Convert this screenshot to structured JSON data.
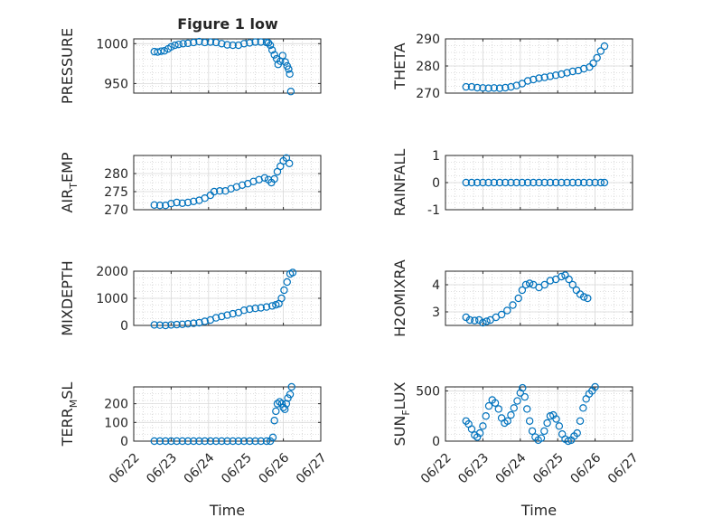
{
  "figure": {
    "title": "Figure 1 low",
    "marker_color": "#0072BD",
    "axis_color": "#262626",
    "grid_color": "#c0c0c0"
  },
  "chart_data": [
    {
      "type": "scatter",
      "id": "pressure",
      "title": "Figure 1 low",
      "ylabel": "PRESSURE",
      "ylabel_main": "PRESSURE",
      "ylabel_sub": "",
      "ylabel_rest": "",
      "xlabel": "",
      "ylim": [
        938,
        1006
      ],
      "yticks": [
        950,
        1000
      ],
      "ytick_labels": [
        "950",
        "1000"
      ],
      "xlim": [
        0,
        5
      ],
      "xticks": [
        0,
        1,
        2,
        3,
        4,
        5
      ],
      "xtick_labels": [
        "",
        "",
        "",
        "",
        "",
        ""
      ],
      "grid": "on",
      "marker": "circle-open",
      "points": [
        [
          0.55,
          990
        ],
        [
          0.64,
          989.5
        ],
        [
          0.73,
          990.5
        ],
        [
          0.82,
          991
        ],
        [
          0.92,
          993.5
        ],
        [
          1.0,
          996
        ],
        [
          1.1,
          998
        ],
        [
          1.2,
          999
        ],
        [
          1.32,
          1000
        ],
        [
          1.45,
          1000.5
        ],
        [
          1.6,
          1001.5
        ],
        [
          1.75,
          1002.5
        ],
        [
          1.9,
          1001.5
        ],
        [
          2.05,
          1002
        ],
        [
          2.2,
          1001.5
        ],
        [
          2.35,
          1000
        ],
        [
          2.5,
          998.5
        ],
        [
          2.65,
          998
        ],
        [
          2.8,
          998
        ],
        [
          2.95,
          1000
        ],
        [
          3.1,
          1001
        ],
        [
          3.25,
          1002
        ],
        [
          3.4,
          1002
        ],
        [
          3.55,
          1001.5
        ],
        [
          3.6,
          1001
        ],
        [
          3.65,
          998
        ],
        [
          3.7,
          992
        ],
        [
          3.76,
          986
        ],
        [
          3.82,
          981
        ],
        [
          3.86,
          974
        ],
        [
          3.92,
          978
        ],
        [
          3.98,
          985
        ],
        [
          4.05,
          977
        ],
        [
          4.1,
          972
        ],
        [
          4.14,
          968
        ],
        [
          4.17,
          962
        ],
        [
          4.2,
          940
        ]
      ]
    },
    {
      "type": "scatter",
      "id": "theta",
      "ylabel": "THETA",
      "ylabel_main": "THETA",
      "ylabel_sub": "",
      "ylabel_rest": "",
      "xlabel": "",
      "ylim": [
        270,
        290
      ],
      "yticks": [
        270,
        280,
        290
      ],
      "ytick_labels": [
        "270",
        "280",
        "290"
      ],
      "xlim": [
        0,
        5
      ],
      "xticks": [
        0,
        1,
        2,
        3,
        4,
        5
      ],
      "xtick_labels": [
        "",
        "",
        "",
        "",
        "",
        ""
      ],
      "grid": "on",
      "marker": "circle-open",
      "points": [
        [
          0.55,
          272.3
        ],
        [
          0.7,
          272.3
        ],
        [
          0.85,
          272
        ],
        [
          1.0,
          271.9
        ],
        [
          1.15,
          271.8
        ],
        [
          1.3,
          271.9
        ],
        [
          1.45,
          271.8
        ],
        [
          1.6,
          272
        ],
        [
          1.75,
          272.3
        ],
        [
          1.9,
          272.8
        ],
        [
          2.05,
          273.5
        ],
        [
          2.2,
          274.5
        ],
        [
          2.35,
          275
        ],
        [
          2.5,
          275.5
        ],
        [
          2.65,
          275.8
        ],
        [
          2.8,
          276.2
        ],
        [
          2.95,
          276.6
        ],
        [
          3.1,
          277
        ],
        [
          3.25,
          277.5
        ],
        [
          3.4,
          278
        ],
        [
          3.55,
          278.3
        ],
        [
          3.7,
          279
        ],
        [
          3.85,
          279.6
        ],
        [
          3.95,
          281
        ],
        [
          4.05,
          283
        ],
        [
          4.15,
          285.5
        ],
        [
          4.25,
          287.3
        ]
      ]
    },
    {
      "type": "scatter",
      "id": "air_temp",
      "ylabel": "AIR_TEMP",
      "ylabel_main": "AIR",
      "ylabel_sub": "T",
      "ylabel_rest": "EMP",
      "xlabel": "",
      "ylim": [
        270,
        285
      ],
      "yticks": [
        270,
        275,
        280
      ],
      "ytick_labels": [
        "270",
        "275",
        "280"
      ],
      "xlim": [
        0,
        5
      ],
      "xticks": [
        0,
        1,
        2,
        3,
        4,
        5
      ],
      "xtick_labels": [
        "",
        "",
        "",
        "",
        "",
        ""
      ],
      "grid": "on",
      "marker": "circle-open",
      "points": [
        [
          0.55,
          271.3
        ],
        [
          0.7,
          271.2
        ],
        [
          0.85,
          271.2
        ],
        [
          1.0,
          271.7
        ],
        [
          1.15,
          272
        ],
        [
          1.3,
          271.8
        ],
        [
          1.45,
          272
        ],
        [
          1.6,
          272.3
        ],
        [
          1.75,
          272.6
        ],
        [
          1.9,
          273.2
        ],
        [
          2.05,
          274
        ],
        [
          2.15,
          275
        ],
        [
          2.3,
          275.2
        ],
        [
          2.45,
          275.2
        ],
        [
          2.6,
          275.8
        ],
        [
          2.75,
          276.3
        ],
        [
          2.9,
          276.8
        ],
        [
          3.05,
          277.2
        ],
        [
          3.2,
          277.8
        ],
        [
          3.35,
          278.3
        ],
        [
          3.5,
          278.8
        ],
        [
          3.6,
          278.3
        ],
        [
          3.68,
          277.5
        ],
        [
          3.76,
          278.5
        ],
        [
          3.84,
          280.5
        ],
        [
          3.92,
          282
        ],
        [
          4.0,
          283.5
        ],
        [
          4.08,
          284.3
        ],
        [
          4.16,
          282.8
        ]
      ]
    },
    {
      "type": "scatter",
      "id": "rainfall",
      "ylabel": "RAINFALL",
      "ylabel_main": "RAINFALL",
      "ylabel_sub": "",
      "ylabel_rest": "",
      "xlabel": "",
      "ylim": [
        -1,
        1
      ],
      "yticks": [
        -1,
        0,
        1
      ],
      "ytick_labels": [
        "-1",
        "0",
        "1"
      ],
      "xlim": [
        0,
        5
      ],
      "xticks": [
        0,
        1,
        2,
        3,
        4,
        5
      ],
      "xtick_labels": [
        "",
        "",
        "",
        "",
        "",
        ""
      ],
      "grid": "on",
      "marker": "circle-open",
      "points": [
        [
          0.55,
          0
        ],
        [
          0.7,
          0
        ],
        [
          0.85,
          0
        ],
        [
          1.0,
          0
        ],
        [
          1.15,
          0
        ],
        [
          1.3,
          0
        ],
        [
          1.45,
          0
        ],
        [
          1.6,
          0
        ],
        [
          1.75,
          0
        ],
        [
          1.9,
          0
        ],
        [
          2.05,
          0
        ],
        [
          2.2,
          0
        ],
        [
          2.35,
          0
        ],
        [
          2.5,
          0
        ],
        [
          2.65,
          0
        ],
        [
          2.8,
          0
        ],
        [
          2.95,
          0
        ],
        [
          3.1,
          0
        ],
        [
          3.25,
          0
        ],
        [
          3.4,
          0
        ],
        [
          3.55,
          0
        ],
        [
          3.7,
          0
        ],
        [
          3.85,
          0
        ],
        [
          4.0,
          0
        ],
        [
          4.15,
          0
        ],
        [
          4.25,
          0
        ]
      ]
    },
    {
      "type": "scatter",
      "id": "mixdepth",
      "ylabel": "MIXDEPTH",
      "ylabel_main": "MIXDEPTH",
      "ylabel_sub": "",
      "ylabel_rest": "",
      "xlabel": "",
      "ylim": [
        0,
        2000
      ],
      "yticks": [
        0,
        1000,
        2000
      ],
      "ytick_labels": [
        "0",
        "1000",
        "2000"
      ],
      "xlim": [
        0,
        5
      ],
      "xticks": [
        0,
        1,
        2,
        3,
        4,
        5
      ],
      "xtick_labels": [
        "",
        "",
        "",
        "",
        "",
        ""
      ],
      "grid": "on",
      "marker": "circle-open",
      "points": [
        [
          0.55,
          20
        ],
        [
          0.7,
          10
        ],
        [
          0.85,
          0
        ],
        [
          1.0,
          20
        ],
        [
          1.15,
          30
        ],
        [
          1.3,
          40
        ],
        [
          1.45,
          60
        ],
        [
          1.6,
          80
        ],
        [
          1.75,
          100
        ],
        [
          1.9,
          150
        ],
        [
          2.05,
          200
        ],
        [
          2.2,
          280
        ],
        [
          2.35,
          330
        ],
        [
          2.5,
          380
        ],
        [
          2.65,
          430
        ],
        [
          2.8,
          470
        ],
        [
          2.95,
          560
        ],
        [
          3.1,
          600
        ],
        [
          3.25,
          630
        ],
        [
          3.4,
          650
        ],
        [
          3.55,
          680
        ],
        [
          3.7,
          720
        ],
        [
          3.8,
          760
        ],
        [
          3.88,
          800
        ],
        [
          3.95,
          1000
        ],
        [
          4.02,
          1300
        ],
        [
          4.1,
          1600
        ],
        [
          4.18,
          1900
        ],
        [
          4.25,
          1950
        ]
      ]
    },
    {
      "type": "scatter",
      "id": "h2omixra",
      "ylabel": "H2OMIXRA",
      "ylabel_main": "H2OMIXRA",
      "ylabel_sub": "",
      "ylabel_rest": "",
      "xlabel": "",
      "ylim": [
        2.5,
        4.5
      ],
      "yticks": [
        3,
        4
      ],
      "ytick_labels": [
        "3",
        "4"
      ],
      "xlim": [
        0,
        5
      ],
      "xticks": [
        0,
        1,
        2,
        3,
        4,
        5
      ],
      "xtick_labels": [
        "",
        "",
        "",
        "",
        "",
        ""
      ],
      "grid": "on",
      "marker": "circle-open",
      "points": [
        [
          0.55,
          2.8
        ],
        [
          0.65,
          2.7
        ],
        [
          0.78,
          2.68
        ],
        [
          0.9,
          2.7
        ],
        [
          1.0,
          2.6
        ],
        [
          1.1,
          2.65
        ],
        [
          1.2,
          2.7
        ],
        [
          1.35,
          2.8
        ],
        [
          1.5,
          2.9
        ],
        [
          1.65,
          3.05
        ],
        [
          1.8,
          3.25
        ],
        [
          1.95,
          3.5
        ],
        [
          2.05,
          3.8
        ],
        [
          2.15,
          4.0
        ],
        [
          2.25,
          4.05
        ],
        [
          2.35,
          4.0
        ],
        [
          2.5,
          3.9
        ],
        [
          2.65,
          4.0
        ],
        [
          2.8,
          4.15
        ],
        [
          2.95,
          4.2
        ],
        [
          3.1,
          4.3
        ],
        [
          3.2,
          4.35
        ],
        [
          3.3,
          4.2
        ],
        [
          3.4,
          4.0
        ],
        [
          3.5,
          3.8
        ],
        [
          3.6,
          3.65
        ],
        [
          3.7,
          3.55
        ],
        [
          3.8,
          3.5
        ]
      ]
    },
    {
      "type": "scatter",
      "id": "terr_msl",
      "ylabel": "TERR_MSL",
      "ylabel_main": "TERR",
      "ylabel_sub": "M",
      "ylabel_rest": "SL",
      "xlabel": "Time",
      "ylim": [
        0,
        290
      ],
      "yticks": [
        0,
        100,
        200
      ],
      "ytick_labels": [
        "0",
        "100",
        "200"
      ],
      "xlim": [
        0,
        5
      ],
      "xticks": [
        0,
        1,
        2,
        3,
        4,
        5
      ],
      "xtick_labels": [
        "06/22",
        "06/23",
        "06/24",
        "06/25",
        "06/26",
        "06/27"
      ],
      "grid": "on",
      "marker": "circle-open",
      "points": [
        [
          0.55,
          0
        ],
        [
          0.7,
          0
        ],
        [
          0.85,
          0
        ],
        [
          1.0,
          0
        ],
        [
          1.15,
          0
        ],
        [
          1.3,
          0
        ],
        [
          1.45,
          0
        ],
        [
          1.6,
          0
        ],
        [
          1.75,
          0
        ],
        [
          1.9,
          0
        ],
        [
          2.05,
          0
        ],
        [
          2.2,
          0
        ],
        [
          2.35,
          0
        ],
        [
          2.5,
          0
        ],
        [
          2.65,
          0
        ],
        [
          2.8,
          0
        ],
        [
          2.95,
          0
        ],
        [
          3.1,
          0
        ],
        [
          3.25,
          0
        ],
        [
          3.4,
          0
        ],
        [
          3.55,
          0
        ],
        [
          3.65,
          0
        ],
        [
          3.72,
          20
        ],
        [
          3.76,
          110
        ],
        [
          3.8,
          160
        ],
        [
          3.84,
          200
        ],
        [
          3.9,
          210
        ],
        [
          3.96,
          200
        ],
        [
          4.0,
          180
        ],
        [
          4.04,
          170
        ],
        [
          4.08,
          200
        ],
        [
          4.12,
          230
        ],
        [
          4.18,
          250
        ],
        [
          4.22,
          290
        ]
      ]
    },
    {
      "type": "scatter",
      "id": "sun_flux",
      "ylabel": "SUN_FLUX",
      "ylabel_main": "SUN",
      "ylabel_sub": "F",
      "ylabel_rest": "LUX",
      "xlabel": "Time",
      "ylim": [
        0,
        540
      ],
      "yticks": [
        0,
        500
      ],
      "ytick_labels": [
        "0",
        "500"
      ],
      "xlim": [
        0,
        5
      ],
      "xticks": [
        0,
        1,
        2,
        3,
        4,
        5
      ],
      "xtick_labels": [
        "06/22",
        "06/23",
        "06/24",
        "06/25",
        "06/26",
        "06/27"
      ],
      "grid": "on",
      "marker": "circle-open",
      "points": [
        [
          0.55,
          200
        ],
        [
          0.62,
          170
        ],
        [
          0.7,
          120
        ],
        [
          0.78,
          60
        ],
        [
          0.85,
          40
        ],
        [
          0.92,
          80
        ],
        [
          1.0,
          150
        ],
        [
          1.08,
          250
        ],
        [
          1.16,
          350
        ],
        [
          1.25,
          410
        ],
        [
          1.33,
          380
        ],
        [
          1.42,
          320
        ],
        [
          1.5,
          230
        ],
        [
          1.58,
          180
        ],
        [
          1.66,
          200
        ],
        [
          1.75,
          260
        ],
        [
          1.83,
          330
        ],
        [
          1.92,
          400
        ],
        [
          2.0,
          480
        ],
        [
          2.06,
          530
        ],
        [
          2.12,
          440
        ],
        [
          2.18,
          320
        ],
        [
          2.25,
          200
        ],
        [
          2.32,
          100
        ],
        [
          2.4,
          40
        ],
        [
          2.48,
          10
        ],
        [
          2.56,
          30
        ],
        [
          2.64,
          100
        ],
        [
          2.72,
          180
        ],
        [
          2.8,
          250
        ],
        [
          2.88,
          260
        ],
        [
          2.96,
          220
        ],
        [
          3.04,
          150
        ],
        [
          3.12,
          70
        ],
        [
          3.2,
          20
        ],
        [
          3.28,
          0
        ],
        [
          3.36,
          10
        ],
        [
          3.44,
          50
        ],
        [
          3.52,
          80
        ],
        [
          3.6,
          200
        ],
        [
          3.68,
          330
        ],
        [
          3.76,
          420
        ],
        [
          3.84,
          470
        ],
        [
          3.92,
          500
        ],
        [
          4.0,
          540
        ]
      ]
    }
  ]
}
